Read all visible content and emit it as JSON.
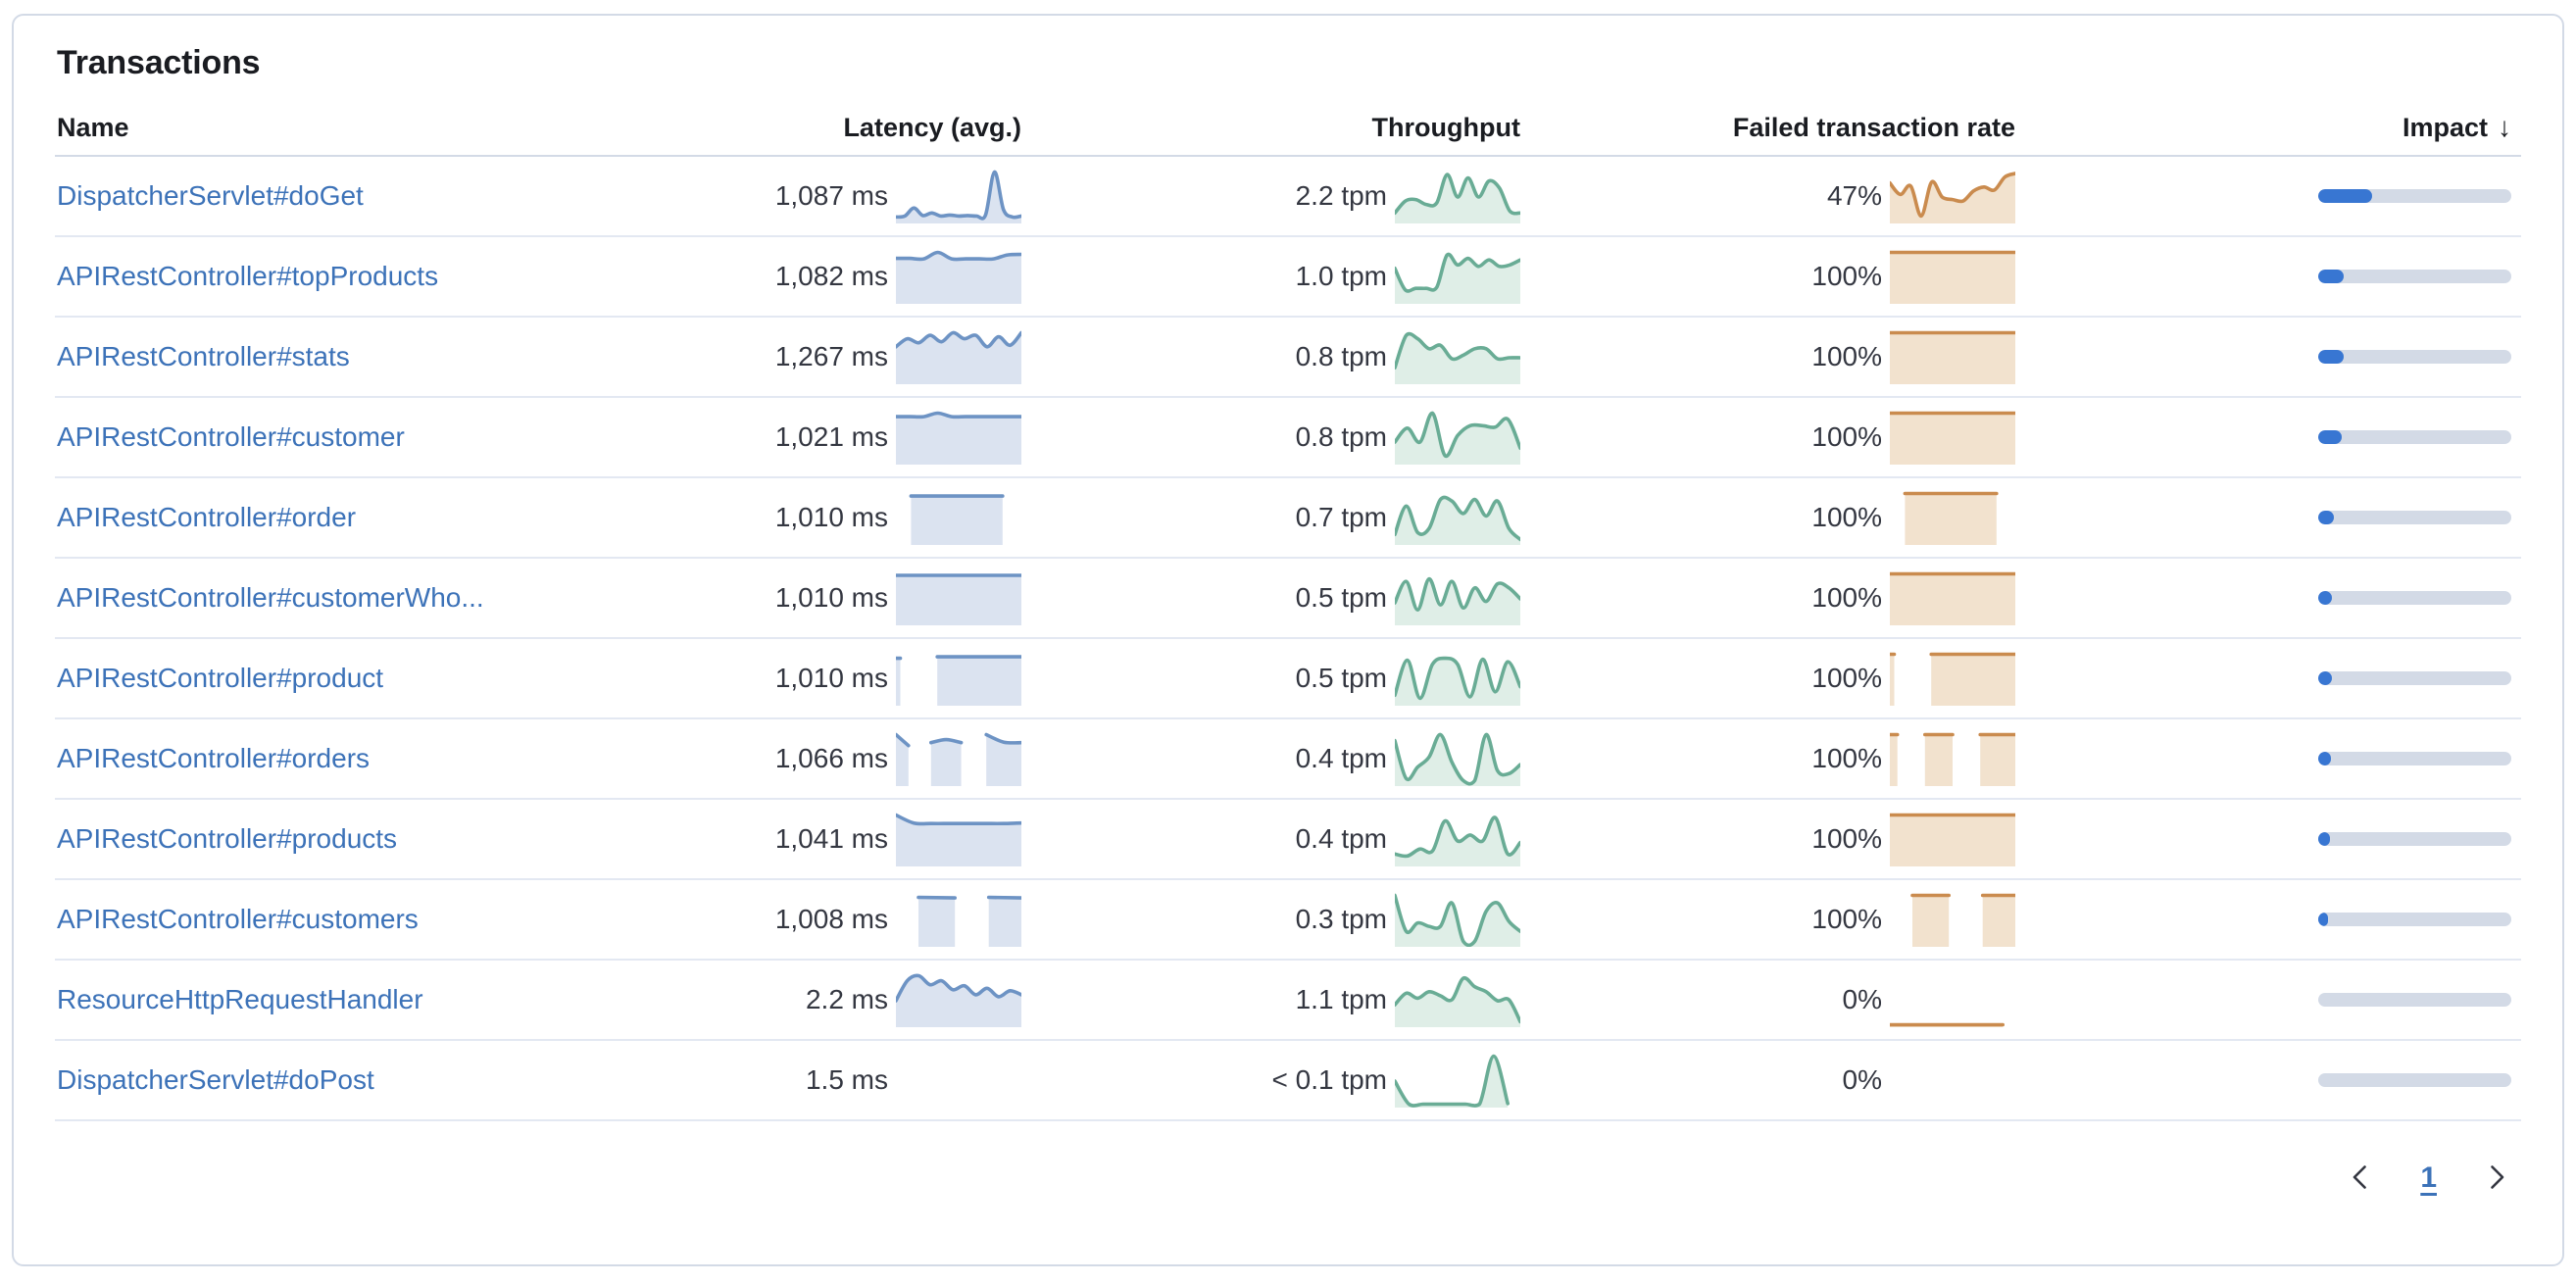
{
  "panel": {
    "title": "Transactions"
  },
  "table": {
    "columns": {
      "name": "Name",
      "latency": "Latency (avg.)",
      "throughput": "Throughput",
      "failed_rate": "Failed transaction rate",
      "impact": "Impact"
    },
    "sort": {
      "column": "impact",
      "direction": "desc",
      "icon": "arrow-down",
      "glyph": "↓"
    },
    "rows": [
      {
        "name": "DispatcherServlet#doGet",
        "latency": "1,087 ms",
        "throughput": "2.2 tpm",
        "failed_rate": "47%",
        "impact_pct": 28,
        "latency_spark": [
          {
            "x0": 0,
            "x1": 1,
            "y": [
              0.1,
              0.12,
              0.28,
              0.13,
              0.18,
              0.12,
              0.14,
              0.12,
              0.13,
              0.12,
              0.14,
              1.0,
              0.25,
              0.1,
              0.12
            ]
          }
        ],
        "throughput_spark": [
          {
            "x0": 0,
            "x1": 1,
            "y": [
              0.18,
              0.42,
              0.45,
              0.35,
              0.38,
              0.95,
              0.5,
              0.88,
              0.5,
              0.82,
              0.68,
              0.22,
              0.18
            ]
          }
        ],
        "failed_spark": [
          {
            "x0": 0,
            "x1": 1,
            "y": [
              0.78,
              0.55,
              0.72,
              0.12,
              0.8,
              0.5,
              0.45,
              0.42,
              0.62,
              0.7,
              0.64,
              0.9,
              0.97
            ]
          }
        ]
      },
      {
        "name": "APIRestController#topProducts",
        "latency": "1,082 ms",
        "throughput": "1.0 tpm",
        "failed_rate": "100%",
        "impact_pct": 13,
        "latency_spark": [
          {
            "x0": 0,
            "x1": 1,
            "y": [
              0.88,
              0.88,
              0.87,
              1.0,
              0.87,
              0.87,
              0.87,
              0.87,
              0.95,
              0.96
            ]
          }
        ],
        "throughput_spark": [
          {
            "x0": 0,
            "x1": 1,
            "y": [
              0.68,
              0.25,
              0.28,
              0.28,
              0.3,
              0.95,
              0.75,
              0.88,
              0.72,
              0.85,
              0.72,
              0.75,
              0.85
            ]
          }
        ],
        "failed_spark": [
          {
            "x0": 0,
            "x1": 1,
            "y": [
              1,
              1
            ]
          }
        ]
      },
      {
        "name": "APIRestController#stats",
        "latency": "1,267 ms",
        "throughput": "0.8 tpm",
        "failed_rate": "100%",
        "impact_pct": 13,
        "latency_spark": [
          {
            "x0": 0,
            "x1": 1,
            "y": [
              0.72,
              0.88,
              0.8,
              0.95,
              0.82,
              1.0,
              0.88,
              0.95,
              0.72,
              0.92,
              0.75,
              1.0
            ]
          }
        ],
        "throughput_spark": [
          {
            "x0": 0,
            "x1": 1,
            "y": [
              0.3,
              0.95,
              0.88,
              0.68,
              0.75,
              0.48,
              0.55,
              0.68,
              0.68,
              0.48,
              0.5,
              0.5
            ]
          }
        ],
        "failed_spark": [
          {
            "x0": 0,
            "x1": 1,
            "y": [
              1,
              1
            ]
          }
        ]
      },
      {
        "name": "APIRestController#customer",
        "latency": "1,021 ms",
        "throughput": "0.8 tpm",
        "failed_rate": "100%",
        "impact_pct": 12,
        "latency_spark": [
          {
            "x0": 0,
            "x1": 1,
            "y": [
              0.93,
              0.93,
              0.93,
              1.0,
              0.93,
              0.93,
              0.93,
              0.93,
              0.93,
              0.93
            ]
          }
        ],
        "throughput_spark": [
          {
            "x0": 0,
            "x1": 1,
            "y": [
              0.42,
              0.7,
              0.42,
              1.0,
              0.15,
              0.55,
              0.75,
              0.75,
              0.72,
              0.88,
              0.3
            ]
          }
        ],
        "failed_spark": [
          {
            "x0": 0,
            "x1": 1,
            "y": [
              1,
              1
            ]
          }
        ]
      },
      {
        "name": "APIRestController#order",
        "latency": "1,010 ms",
        "throughput": "0.7 tpm",
        "failed_rate": "100%",
        "impact_pct": 8,
        "latency_spark": [
          {
            "x0": 0.12,
            "x1": 0.85,
            "y": [
              0.95,
              0.95
            ]
          }
        ],
        "throughput_spark": [
          {
            "x0": 0,
            "x1": 1,
            "y": [
              0.18,
              0.75,
              0.22,
              0.3,
              0.88,
              0.85,
              0.6,
              0.88,
              0.55,
              0.85,
              0.3,
              0.08
            ]
          }
        ],
        "failed_spark": [
          {
            "x0": 0.12,
            "x1": 0.85,
            "y": [
              1,
              1
            ]
          }
        ]
      },
      {
        "name": "APIRestController#customerWho...",
        "latency": "1,010 ms",
        "throughput": "0.5 tpm",
        "failed_rate": "100%",
        "impact_pct": 7,
        "latency_spark": [
          {
            "x0": 0,
            "x1": 1,
            "y": [
              0.97,
              0.97
            ]
          }
        ],
        "throughput_spark": [
          {
            "x0": 0,
            "x1": 1,
            "y": [
              0.42,
              0.85,
              0.28,
              0.9,
              0.38,
              0.85,
              0.32,
              0.72,
              0.45,
              0.8,
              0.72,
              0.5
            ]
          }
        ],
        "failed_spark": [
          {
            "x0": 0,
            "x1": 1,
            "y": [
              1,
              1
            ]
          }
        ]
      },
      {
        "name": "APIRestController#product",
        "latency": "1,010 ms",
        "throughput": "0.5 tpm",
        "failed_rate": "100%",
        "impact_pct": 7,
        "latency_spark": [
          {
            "x0": 0,
            "x1": 0.035,
            "y": [
              0.92,
              0.92
            ]
          },
          {
            "x0": 0.33,
            "x1": 1,
            "y": [
              0.95,
              0.95
            ]
          }
        ],
        "throughput_spark": [
          {
            "x0": 0,
            "x1": 1,
            "y": [
              0.18,
              0.88,
              0.12,
              0.8,
              0.92,
              0.8,
              0.15,
              0.9,
              0.25,
              0.85,
              0.35
            ]
          }
        ],
        "failed_spark": [
          {
            "x0": 0,
            "x1": 0.035,
            "y": [
              1,
              1
            ]
          },
          {
            "x0": 0.33,
            "x1": 1,
            "y": [
              1,
              1
            ]
          }
        ]
      },
      {
        "name": "APIRestController#orders",
        "latency": "1,066 ms",
        "throughput": "0.4 tpm",
        "failed_rate": "100%",
        "impact_pct": 6.5,
        "latency_spark": [
          {
            "x0": 0,
            "x1": 0.1,
            "y": [
              1.0,
              0.78
            ]
          },
          {
            "x0": 0.28,
            "x1": 0.52,
            "y": [
              0.84,
              0.9,
              0.84
            ]
          },
          {
            "x0": 0.72,
            "x1": 1,
            "y": [
              1.0,
              0.85,
              0.84
            ]
          }
        ],
        "throughput_spark": [
          {
            "x0": 0,
            "x1": 1,
            "y": [
              0.88,
              0.12,
              0.35,
              0.55,
              1.0,
              0.45,
              0.08,
              0.08,
              1.0,
              0.28,
              0.22,
              0.4
            ]
          }
        ],
        "failed_spark": [
          {
            "x0": 0,
            "x1": 0.06,
            "y": [
              1,
              1
            ]
          },
          {
            "x0": 0.28,
            "x1": 0.5,
            "y": [
              1,
              1
            ]
          },
          {
            "x0": 0.72,
            "x1": 1,
            "y": [
              1,
              1
            ]
          }
        ]
      },
      {
        "name": "APIRestController#products",
        "latency": "1,041 ms",
        "throughput": "0.4 tpm",
        "failed_rate": "100%",
        "impact_pct": 6,
        "latency_spark": [
          {
            "x0": 0,
            "x1": 1,
            "y": [
              1.0,
              0.84,
              0.83,
              0.83,
              0.83,
              0.83,
              0.83,
              0.84
            ]
          }
        ],
        "throughput_spark": [
          {
            "x0": 0,
            "x1": 1,
            "y": [
              0.22,
              0.18,
              0.32,
              0.28,
              0.88,
              0.48,
              0.6,
              0.48,
              0.95,
              0.22,
              0.45
            ]
          }
        ],
        "failed_spark": [
          {
            "x0": 0,
            "x1": 1,
            "y": [
              1,
              1
            ]
          }
        ]
      },
      {
        "name": "APIRestController#customers",
        "latency": "1,008 ms",
        "throughput": "0.3 tpm",
        "failed_rate": "100%",
        "impact_pct": 5,
        "latency_spark": [
          {
            "x0": 0.18,
            "x1": 0.47,
            "y": [
              0.96,
              0.95
            ]
          },
          {
            "x0": 0.74,
            "x1": 1,
            "y": [
              0.96,
              0.95
            ]
          }
        ],
        "throughput_spark": [
          {
            "x0": 0,
            "x1": 1,
            "y": [
              1.0,
              0.28,
              0.45,
              0.38,
              0.38,
              0.85,
              0.08,
              0.08,
              0.68,
              0.85,
              0.48,
              0.28
            ]
          }
        ],
        "failed_spark": [
          {
            "x0": 0.18,
            "x1": 0.47,
            "y": [
              1,
              1
            ]
          },
          {
            "x0": 0.74,
            "x1": 1,
            "y": [
              1,
              1
            ]
          }
        ]
      },
      {
        "name": "ResourceHttpRequestHandler",
        "latency": "2.2 ms",
        "throughput": "1.1 tpm",
        "failed_rate": "0%",
        "impact_pct": 0,
        "latency_spark": [
          {
            "x0": 0,
            "x1": 1,
            "y": [
              0.5,
              0.9,
              1.0,
              0.82,
              0.9,
              0.72,
              0.8,
              0.62,
              0.75,
              0.58,
              0.7,
              0.62
            ]
          }
        ],
        "throughput_spark": [
          {
            "x0": 0,
            "x1": 1,
            "y": [
              0.42,
              0.65,
              0.55,
              0.68,
              0.6,
              0.52,
              0.95,
              0.78,
              0.68,
              0.5,
              0.52,
              0.08
            ]
          }
        ],
        "failed_spark": [
          {
            "x0": 0,
            "x1": 0.9,
            "y": [
              0.02,
              0.02
            ]
          }
        ]
      },
      {
        "name": "DispatcherServlet#doPost",
        "latency": "1.5 ms",
        "throughput": "< 0.1 tpm",
        "failed_rate": "0%",
        "impact_pct": 0,
        "latency_spark": [],
        "throughput_spark": [
          {
            "x0": 0,
            "x1": 0.9,
            "y": [
              0.5,
              0.04,
              0.04,
              0.04,
              0.04,
              0.04,
              0.04,
              1.0,
              0.05
            ]
          }
        ],
        "failed_spark": []
      }
    ]
  },
  "pagination": {
    "current_page": "1",
    "prev_icon": "chevron-left",
    "next_icon": "chevron-right"
  },
  "colors": {
    "link": "#3c72b8",
    "text": "#343741",
    "heading": "#1a1c21",
    "latency_line": "#6d93c4",
    "latency_fill": "#dbe3f0",
    "throughput_line": "#69ac95",
    "throughput_fill": "#dfeee7",
    "failed_line": "#ca8b4e",
    "failed_fill": "#f2e2ce",
    "impact_fill": "#3876d2",
    "impact_track": "#d3dae6",
    "row_border": "#e3e8f2",
    "panel_border": "#d3dae6"
  }
}
